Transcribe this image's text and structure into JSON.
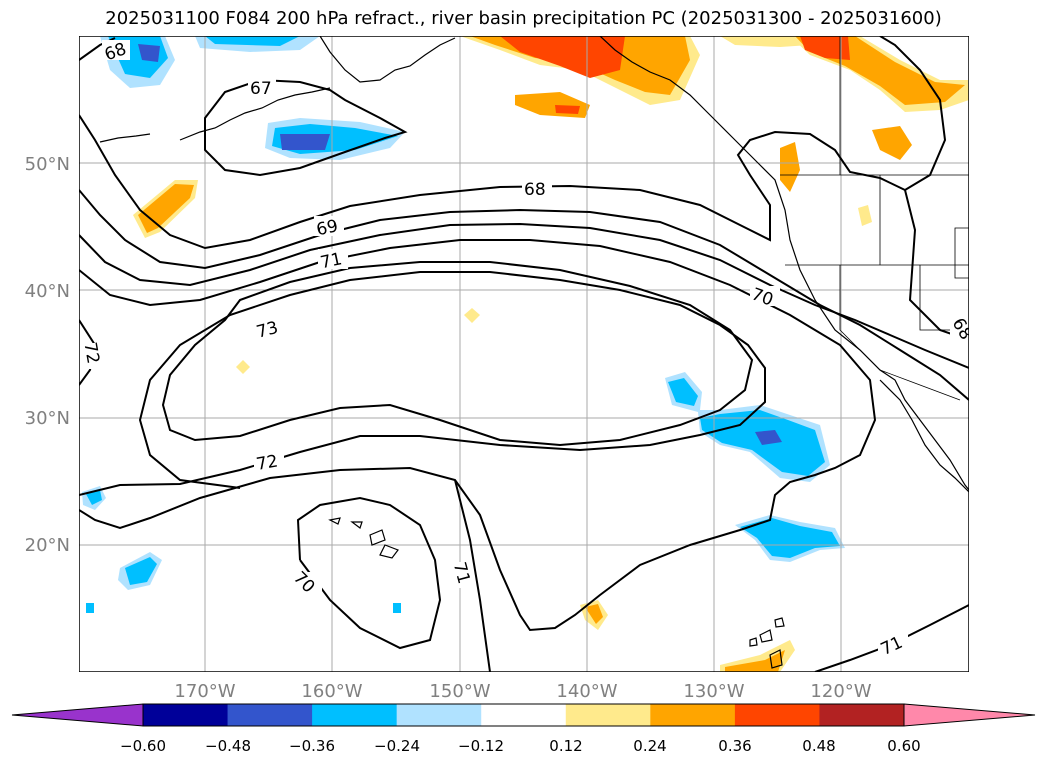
{
  "title": "2025031100 F084 200 hPa refract., river basin precipitation PC (2025031300 - 2025031600)",
  "map": {
    "lat_ticks": [
      "50°N",
      "40°N",
      "30°N",
      "20°N"
    ],
    "lon_ticks": [
      "170°W",
      "160°W",
      "150°W",
      "140°W",
      "130°W",
      "120°W"
    ],
    "contour_labels": [
      "68",
      "67",
      "68",
      "69",
      "71",
      "70",
      "73",
      "72",
      "72",
      "70",
      "71",
      "71",
      "68"
    ],
    "grid": true,
    "label_color": "#808080"
  },
  "colorbar": {
    "ticks": [
      "−0.60",
      "−0.48",
      "−0.36",
      "−0.24",
      "−0.12",
      "0.12",
      "0.24",
      "0.36",
      "0.48",
      "0.60"
    ],
    "colors": [
      "#9933cc",
      "#000099",
      "#3355cc",
      "#00bfff",
      "#b0e2ff",
      "#ffffff",
      "#ffea8c",
      "#ffa500",
      "#ff4500",
      "#b22222",
      "#ff88aa"
    ]
  }
}
